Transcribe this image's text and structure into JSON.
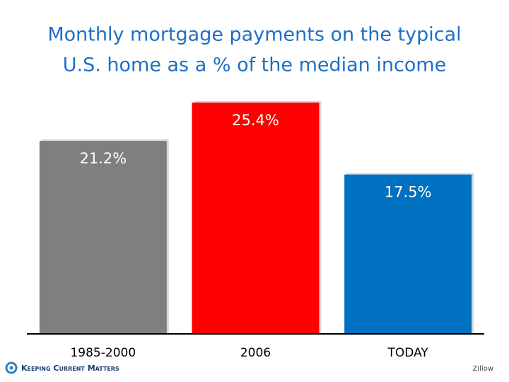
{
  "chart_data": {
    "type": "bar",
    "title": [
      "Monthly mortgage payments on the typical",
      "U.S. home as a % of the median income"
    ],
    "categories": [
      "1985-2000",
      "2006",
      "TODAY"
    ],
    "values": [
      21.2,
      25.4,
      17.5
    ],
    "value_labels": [
      "21.2%",
      "25.4%",
      "17.5%"
    ],
    "colors": [
      "#7f7f7f",
      "#ff0000",
      "#0070c0"
    ]
  },
  "footer": {
    "brand": "Keeping Current Matters",
    "source": "Zillow"
  }
}
